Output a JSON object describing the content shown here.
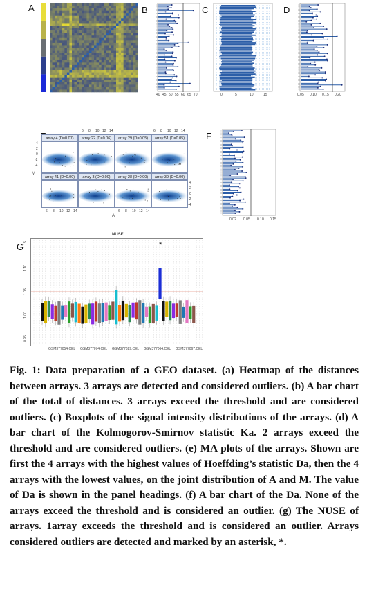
{
  "panels": {
    "a": {
      "label": "A"
    },
    "b": {
      "label": "B",
      "ticks": [
        "40",
        "45",
        "50",
        "55",
        "60",
        "65",
        "70"
      ]
    },
    "c": {
      "label": "C",
      "ticks": [
        "0",
        "5",
        "10",
        "15"
      ]
    },
    "d": {
      "label": "D",
      "ticks": [
        "0.05",
        "0.10",
        "0.15",
        "0.20"
      ]
    },
    "e": {
      "label": "E",
      "top_ticks": [
        "6",
        "8",
        "10",
        "12",
        "14",
        "6",
        "8",
        "10",
        "12",
        "14"
      ],
      "bottom_ticks": [
        "6",
        "8",
        "10",
        "12",
        "14",
        "6",
        "8",
        "10",
        "12",
        "14"
      ],
      "left_ticks": [
        "4",
        "2",
        "0",
        "-2",
        "-4"
      ],
      "right_ticks": [
        "4",
        "2",
        "0",
        "-2",
        "-4"
      ],
      "y_axis_label": "M",
      "x_axis_label": "A",
      "headings": [
        "array 4 (D=0.07)",
        "array 22 (D=0.06)",
        "array 29 (D=0.05)",
        "array 51 (D=0.05)",
        "array 41 (D=0.00)",
        "array 3 (D=0.00)",
        "array 28 (D=0.00)",
        "array 39 (D=0.00)"
      ]
    },
    "f": {
      "label": "F",
      "ticks": [
        "0.02",
        "0.05",
        "0.10",
        "0.15"
      ]
    },
    "g": {
      "label": "G",
      "title": "NUSE",
      "y_ticks": [
        "1.15",
        "1.10",
        "1.05",
        "1.00",
        "0.95"
      ],
      "x_ticks": [
        "GSM377054.CEL",
        "GSM377074.CEL",
        "GSM377029.CEL",
        "GSM377064.CEL",
        "GSM377067.CEL"
      ],
      "outlier_marker": "*"
    }
  },
  "caption": {
    "lead": "Fig. 1: Data preparation of a GEO dataset.",
    "body": " (a) Heatmap of the distances between arrays. 3 arrays are detected and considered outliers. (b) A bar chart of the total of distances. 3 arrays exceed the threshold and are considered outliers. (c) Boxplots of the signal intensity distributions of the arrays. (d) A bar chart of the Kolmogorov-Smirnov statistic Ka. 2 arrays exceed the threshold and are considered outliers. (e) MA plots of the arrays. Shown are first the 4 arrays with the highest values of Hoeffding’s statistic Da, then the 4 arrays with the lowest values, on the joint distribution of A and M. The value of Da is shown in the panel headings. (f) A bar chart of the Da. None of the arrays exceed the threshold and is considered an outlier. (g) The NUSE of arrays. 1array exceeds the threshold and is considered an outlier. Arrays considered outliers are detected and marked by an asterisk, *."
  },
  "colors": {
    "navy": "#1e2f7a",
    "blue": "#2c5ea8",
    "yellow": "#e8dd3a",
    "threshold": "#e89a8a"
  }
}
